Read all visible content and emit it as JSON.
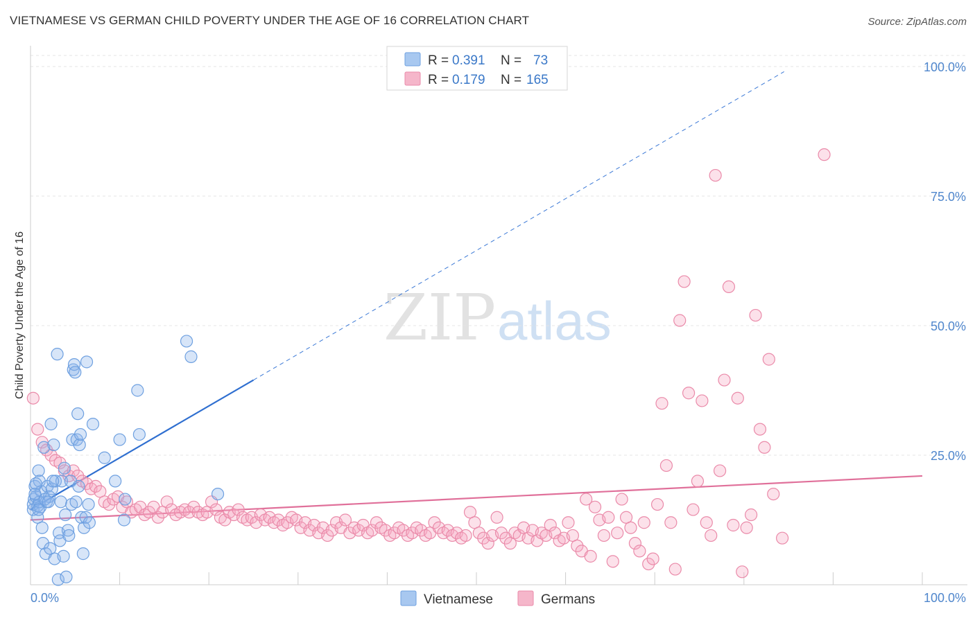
{
  "title": "VIETNAMESE VS GERMAN CHILD POVERTY UNDER THE AGE OF 16 CORRELATION CHART",
  "source": "Source: ZipAtlas.com",
  "watermark": {
    "zip": "ZIP",
    "atlas": "atlas"
  },
  "legend": {
    "rows": [
      {
        "r_label": "R =",
        "r": "0.391",
        "n_label": "N =",
        "n": "73",
        "color": "#a8c8f0"
      },
      {
        "r_label": "R =",
        "r": "0.179",
        "n_label": "N =",
        "n": "165",
        "color": "#f5b6ca"
      }
    ]
  },
  "bottom_legend": {
    "vietnamese": "Vietnamese",
    "germans": "Germans"
  },
  "chart_data": {
    "type": "scatter",
    "title": "VIETNAMESE VS GERMAN CHILD POVERTY UNDER THE AGE OF 16 CORRELATION CHART",
    "xlabel": "",
    "ylabel": "Child Poverty Under the Age of 16",
    "xlim": [
      0,
      100
    ],
    "ylim": [
      0,
      100
    ],
    "x_tick_labels": {
      "left": "0.0%",
      "right": "100.0%"
    },
    "y_tick_labels": [
      "100.0%",
      "75.0%",
      "50.0%",
      "25.0%"
    ],
    "y_ticks": [
      100,
      75,
      50,
      25
    ],
    "grid": true,
    "series": [
      {
        "name": "Vietnamese",
        "color": "#6ea0e0",
        "fill": "rgba(140,180,235,0.35)",
        "R": 0.391,
        "N": 73,
        "trend": {
          "x0": 0,
          "y0": 14.5,
          "x1": 25,
          "y1": 39.5,
          "extend_to_x": 84.5
        },
        "points": [
          [
            0.3,
            14.5
          ],
          [
            0.3,
            15.5
          ],
          [
            0.4,
            16.5
          ],
          [
            0.5,
            19.0
          ],
          [
            0.6,
            17.0
          ],
          [
            0.8,
            15.2
          ],
          [
            0.8,
            13.0
          ],
          [
            0.9,
            22.0
          ],
          [
            1.0,
            20.0
          ],
          [
            1.1,
            15.0
          ],
          [
            1.2,
            18.0
          ],
          [
            1.3,
            11.0
          ],
          [
            1.4,
            8.0
          ],
          [
            1.5,
            26.5
          ],
          [
            1.7,
            6.0
          ],
          [
            1.8,
            16.0
          ],
          [
            1.9,
            19.0
          ],
          [
            2.1,
            17.0
          ],
          [
            2.2,
            7.0
          ],
          [
            2.3,
            31.0
          ],
          [
            2.4,
            18.5
          ],
          [
            2.6,
            27.0
          ],
          [
            2.7,
            5.0
          ],
          [
            2.8,
            20.0
          ],
          [
            3.0,
            44.5
          ],
          [
            3.1,
            1.0
          ],
          [
            3.2,
            10.0
          ],
          [
            3.3,
            8.5
          ],
          [
            3.4,
            16.0
          ],
          [
            3.5,
            20.0
          ],
          [
            3.7,
            5.5
          ],
          [
            3.8,
            22.5
          ],
          [
            3.9,
            13.5
          ],
          [
            4.0,
            1.5
          ],
          [
            4.2,
            10.5
          ],
          [
            4.3,
            9.5
          ],
          [
            4.5,
            20.0
          ],
          [
            4.6,
            15.5
          ],
          [
            4.7,
            28.0
          ],
          [
            4.8,
            41.5
          ],
          [
            4.9,
            42.5
          ],
          [
            5.0,
            41.0
          ],
          [
            5.1,
            16.0
          ],
          [
            5.2,
            28.0
          ],
          [
            5.3,
            33.0
          ],
          [
            5.4,
            19.0
          ],
          [
            5.5,
            27.0
          ],
          [
            5.6,
            29.0
          ],
          [
            5.7,
            13.0
          ],
          [
            5.9,
            6.0
          ],
          [
            6.0,
            11.0
          ],
          [
            6.2,
            13.0
          ],
          [
            6.3,
            43.0
          ],
          [
            6.5,
            15.5
          ],
          [
            6.6,
            12.0
          ],
          [
            7.0,
            31.0
          ],
          [
            8.3,
            24.5
          ],
          [
            9.5,
            20.0
          ],
          [
            10.0,
            28.0
          ],
          [
            10.5,
            12.5
          ],
          [
            10.6,
            16.5
          ],
          [
            12.0,
            37.5
          ],
          [
            12.2,
            29.0
          ],
          [
            17.5,
            47.0
          ],
          [
            18.0,
            44.0
          ],
          [
            21.0,
            17.5
          ],
          [
            0.6,
            19.5
          ],
          [
            1.0,
            16.0
          ],
          [
            0.5,
            17.5
          ],
          [
            1.6,
            16.5
          ],
          [
            2.0,
            16.0
          ],
          [
            0.9,
            14.5
          ],
          [
            2.5,
            20.0
          ]
        ]
      },
      {
        "name": "Germans",
        "color": "#ea8aa9",
        "fill": "rgba(245,170,195,0.35)",
        "R": 0.179,
        "N": 165,
        "trend": {
          "x0": 0,
          "y0": 12.5,
          "x1": 100,
          "y1": 21.0
        },
        "points": [
          [
            0.3,
            36.0
          ],
          [
            0.8,
            30.0
          ],
          [
            1.3,
            27.5
          ],
          [
            1.8,
            26.0
          ],
          [
            2.3,
            25.0
          ],
          [
            2.8,
            24.0
          ],
          [
            3.3,
            23.5
          ],
          [
            3.8,
            22.0
          ],
          [
            4.3,
            21.0
          ],
          [
            4.8,
            22.0
          ],
          [
            5.3,
            21.0
          ],
          [
            5.8,
            20.0
          ],
          [
            6.3,
            19.5
          ],
          [
            6.8,
            18.5
          ],
          [
            7.3,
            19.0
          ],
          [
            7.8,
            18.0
          ],
          [
            8.3,
            16.0
          ],
          [
            8.8,
            15.5
          ],
          [
            9.3,
            16.5
          ],
          [
            9.8,
            17.0
          ],
          [
            10.3,
            15.0
          ],
          [
            10.8,
            16.0
          ],
          [
            11.3,
            14.0
          ],
          [
            11.8,
            14.5
          ],
          [
            12.3,
            15.0
          ],
          [
            12.8,
            13.5
          ],
          [
            13.3,
            14.0
          ],
          [
            13.8,
            15.0
          ],
          [
            14.3,
            13.0
          ],
          [
            14.8,
            14.0
          ],
          [
            15.3,
            16.0
          ],
          [
            15.8,
            14.5
          ],
          [
            16.3,
            13.5
          ],
          [
            16.8,
            14.0
          ],
          [
            17.3,
            14.5
          ],
          [
            17.8,
            14.0
          ],
          [
            18.3,
            15.0
          ],
          [
            18.8,
            14.0
          ],
          [
            19.3,
            13.5
          ],
          [
            19.8,
            14.0
          ],
          [
            20.3,
            16.0
          ],
          [
            20.8,
            14.5
          ],
          [
            21.3,
            13.0
          ],
          [
            21.8,
            12.5
          ],
          [
            22.3,
            14.0
          ],
          [
            22.8,
            13.5
          ],
          [
            23.3,
            14.5
          ],
          [
            23.8,
            13.0
          ],
          [
            24.3,
            12.5
          ],
          [
            24.8,
            13.0
          ],
          [
            25.3,
            12.0
          ],
          [
            25.8,
            13.5
          ],
          [
            26.3,
            12.5
          ],
          [
            26.8,
            13.0
          ],
          [
            27.3,
            12.0
          ],
          [
            27.8,
            12.5
          ],
          [
            28.3,
            11.5
          ],
          [
            28.8,
            12.0
          ],
          [
            29.3,
            13.0
          ],
          [
            29.8,
            12.5
          ],
          [
            30.3,
            11.0
          ],
          [
            30.8,
            12.0
          ],
          [
            31.3,
            10.5
          ],
          [
            31.8,
            11.5
          ],
          [
            32.3,
            10.0
          ],
          [
            32.8,
            11.0
          ],
          [
            33.3,
            9.5
          ],
          [
            33.8,
            10.5
          ],
          [
            34.3,
            12.0
          ],
          [
            34.8,
            11.0
          ],
          [
            35.3,
            12.5
          ],
          [
            35.8,
            10.0
          ],
          [
            36.3,
            11.0
          ],
          [
            36.8,
            10.5
          ],
          [
            37.3,
            11.5
          ],
          [
            37.8,
            10.0
          ],
          [
            38.3,
            10.5
          ],
          [
            38.8,
            12.0
          ],
          [
            39.3,
            11.0
          ],
          [
            39.8,
            10.5
          ],
          [
            40.3,
            9.5
          ],
          [
            40.8,
            10.0
          ],
          [
            41.3,
            11.0
          ],
          [
            41.8,
            10.5
          ],
          [
            42.3,
            9.5
          ],
          [
            42.8,
            10.0
          ],
          [
            43.3,
            11.0
          ],
          [
            43.8,
            10.5
          ],
          [
            44.3,
            9.5
          ],
          [
            44.8,
            10.0
          ],
          [
            45.3,
            12.0
          ],
          [
            45.8,
            11.0
          ],
          [
            46.3,
            10.0
          ],
          [
            46.8,
            10.5
          ],
          [
            47.3,
            9.5
          ],
          [
            47.8,
            10.0
          ],
          [
            48.3,
            9.0
          ],
          [
            48.8,
            9.5
          ],
          [
            49.3,
            14.0
          ],
          [
            49.8,
            12.0
          ],
          [
            50.3,
            10.0
          ],
          [
            50.8,
            9.0
          ],
          [
            51.3,
            8.0
          ],
          [
            51.8,
            9.5
          ],
          [
            52.3,
            13.0
          ],
          [
            52.8,
            10.0
          ],
          [
            53.3,
            9.0
          ],
          [
            53.8,
            8.0
          ],
          [
            54.3,
            10.0
          ],
          [
            54.8,
            9.5
          ],
          [
            55.3,
            11.0
          ],
          [
            55.8,
            9.0
          ],
          [
            56.3,
            10.5
          ],
          [
            56.8,
            8.5
          ],
          [
            57.3,
            10.0
          ],
          [
            57.8,
            9.5
          ],
          [
            58.3,
            11.5
          ],
          [
            58.8,
            10.0
          ],
          [
            59.3,
            8.5
          ],
          [
            59.8,
            9.0
          ],
          [
            60.3,
            12.0
          ],
          [
            60.8,
            9.5
          ],
          [
            61.3,
            7.5
          ],
          [
            61.8,
            6.5
          ],
          [
            62.3,
            16.5
          ],
          [
            62.8,
            5.5
          ],
          [
            63.3,
            15.0
          ],
          [
            63.8,
            12.5
          ],
          [
            64.3,
            9.5
          ],
          [
            64.8,
            13.0
          ],
          [
            65.3,
            4.5
          ],
          [
            65.8,
            10.0
          ],
          [
            66.3,
            16.5
          ],
          [
            66.8,
            13.0
          ],
          [
            67.3,
            11.0
          ],
          [
            67.8,
            8.0
          ],
          [
            68.3,
            6.5
          ],
          [
            68.8,
            12.0
          ],
          [
            69.3,
            4.0
          ],
          [
            69.8,
            5.0
          ],
          [
            70.3,
            15.5
          ],
          [
            70.8,
            35.0
          ],
          [
            71.3,
            23.0
          ],
          [
            71.8,
            12.0
          ],
          [
            72.3,
            3.0
          ],
          [
            72.8,
            51.0
          ],
          [
            73.3,
            58.5
          ],
          [
            73.8,
            37.0
          ],
          [
            74.3,
            14.5
          ],
          [
            74.8,
            20.0
          ],
          [
            75.3,
            35.5
          ],
          [
            75.8,
            12.0
          ],
          [
            76.3,
            9.5
          ],
          [
            76.8,
            79.0
          ],
          [
            77.3,
            22.0
          ],
          [
            77.8,
            39.5
          ],
          [
            78.3,
            57.5
          ],
          [
            78.8,
            11.5
          ],
          [
            79.3,
            36.0
          ],
          [
            79.8,
            2.5
          ],
          [
            80.3,
            11.0
          ],
          [
            80.8,
            13.5
          ],
          [
            81.3,
            52.0
          ],
          [
            81.8,
            30.0
          ],
          [
            82.3,
            26.5
          ],
          [
            82.8,
            43.5
          ],
          [
            83.3,
            17.5
          ],
          [
            84.3,
            9.0
          ],
          [
            89.0,
            83.0
          ]
        ]
      }
    ]
  }
}
